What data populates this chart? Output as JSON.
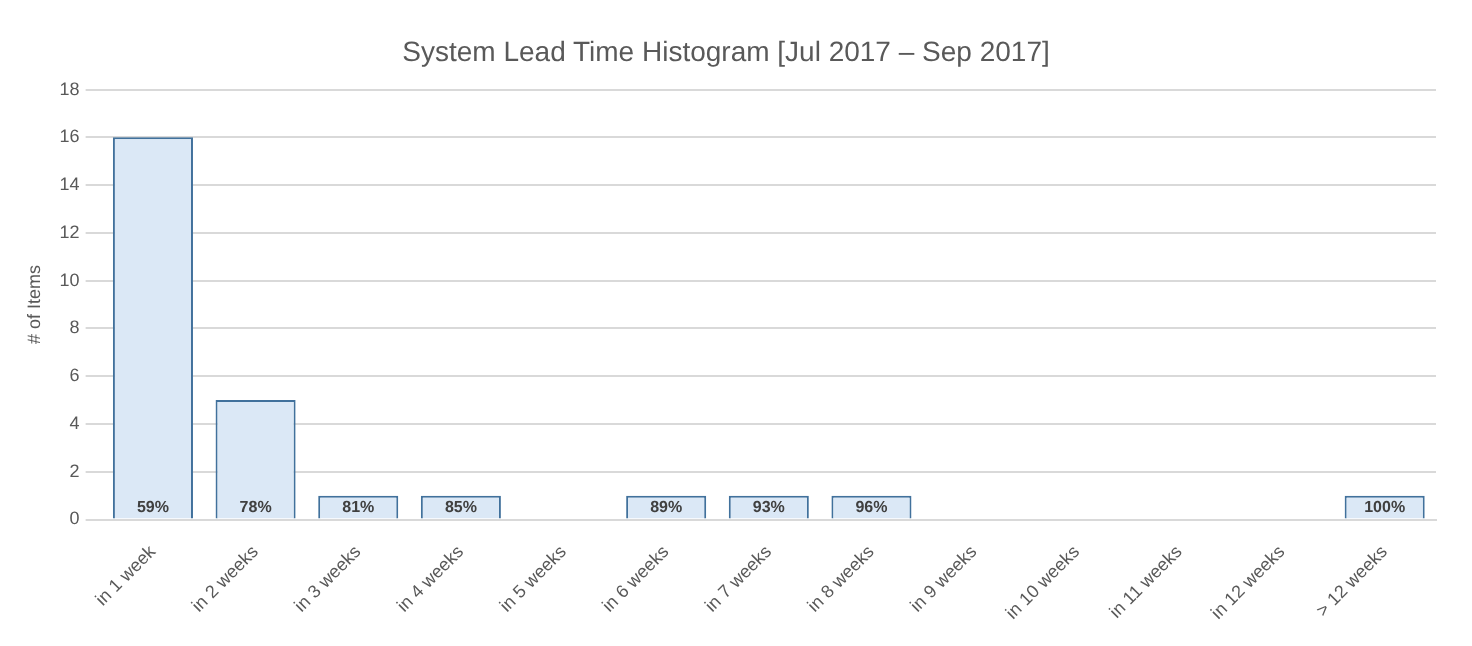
{
  "chart_data": {
    "type": "bar",
    "title": "System Lead Time Histogram [Jul 2017 – Sep 2017]",
    "ylabel": "# of Items",
    "categories": [
      "in 1 week",
      "in 2 weeks",
      "in 3 weeks",
      "in 4 weeks",
      "in 5 weeks",
      "in 6 weeks",
      "in 7 weeks",
      "in 8 weeks",
      "in 9 weeks",
      "in 10 weeks",
      "in 11 weeks",
      "in 12 weeks",
      "> 12 weeks"
    ],
    "values": [
      16,
      5,
      1,
      1,
      0,
      1,
      1,
      1,
      0,
      0,
      0,
      0,
      1
    ],
    "annotations": [
      {
        "text": "59%",
        "x": "in 1 week",
        "y": 0
      },
      {
        "text": "78%",
        "x": "in 2 weeks",
        "y": 0
      },
      {
        "text": "81%",
        "x": "in 3 weeks",
        "y": 0
      },
      {
        "text": "85%",
        "x": "in 4 weeks",
        "y": 0
      },
      {
        "text": "89%",
        "x": "in 6 weeks",
        "y": 0
      },
      {
        "text": "93%",
        "x": "in 7 weeks",
        "y": 0
      },
      {
        "text": "96%",
        "x": "in 8 weeks",
        "y": 0
      },
      {
        "text": "100%",
        "x": "> 12 weeks",
        "y": 0
      }
    ],
    "color": "#dbe8f6",
    "ylim": [
      0,
      18
    ],
    "yticks": [
      0,
      2,
      4,
      6,
      8,
      10,
      12,
      14,
      16,
      18
    ],
    "grid": "y",
    "legend": false
  }
}
